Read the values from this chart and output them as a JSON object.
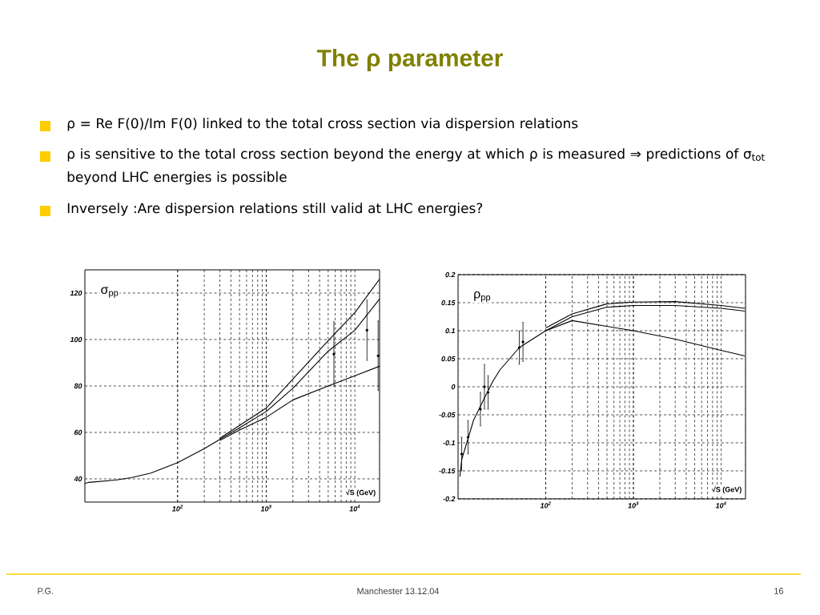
{
  "chart_data": [
    {
      "type": "line",
      "title": "The ρ parameter",
      "annotations": [
        "ρ = Re F(0)/Im F(0)  linked to the total cross section via dispersion relations",
        "ρ  is sensitive to the total cross section beyond the energy at which ρ is measured ⇒ predictions of σ$_{tot}$ beyond LHC energies is possible",
        "Inversely :Are dispersion relations still valid at LHC energies?",
        "σ$_{pp}$",
        "√S (GeV)"
      ],
      "log": "x",
      "grid": true,
      "xlim": [
        9,
        19000
      ],
      "ylim": [
        30,
        130
      ],
      "xticks": [
        {
          "value": 100,
          "label": "10$^{2}$"
        },
        {
          "value": 1000,
          "label": "10$^{3}$"
        },
        {
          "value": 10000,
          "label": "10$^{4}$"
        }
      ],
      "yticks": [
        40,
        60,
        80,
        100,
        120
      ],
      "series": [
        {
          "color": "#000000",
          "x": [
            9,
            10,
            20,
            30,
            50,
            100,
            200,
            300,
            500,
            1000,
            2000,
            5000,
            10000,
            19000
          ],
          "values": [
            38,
            38.5,
            39.5,
            40.5,
            42.5,
            47,
            53,
            57,
            62,
            69,
            79,
            95,
            104,
            117.5
          ]
        },
        {
          "color": "#000000",
          "x": [
            300,
            500,
            1000,
            2000,
            5000,
            10000,
            19000
          ],
          "values": [
            57.5,
            63,
            70.5,
            83,
            99.5,
            111.6,
            126
          ]
        },
        {
          "color": "#000000",
          "x": [
            300,
            500,
            1000,
            2000,
            5000,
            10000,
            19000
          ],
          "values": [
            56.5,
            61,
            66.5,
            74,
            80,
            84.4,
            88.5
          ]
        },
        {
          "type": "scatter",
          "color": "#000000",
          "x": [
            5800,
            13700,
            18300
          ],
          "values": [
            93.7,
            104,
            93
          ],
          "errors": [
            14,
            13,
            15
          ]
        }
      ]
    },
    {
      "type": "line",
      "annotations": [
        "ρ$_{pp}$",
        "√S (GeV)",
        "P.G.",
        "Manchester 13.12.04",
        "16"
      ],
      "log": "x",
      "grid": true,
      "xlim": [
        10,
        19000
      ],
      "ylim": [
        -0.2,
        0.2
      ],
      "xticks": [
        {
          "value": 100,
          "label": "10$^{2}$"
        },
        {
          "value": 1000,
          "label": "10$^{3}$"
        },
        {
          "value": 10000,
          "label": "10$^{4}$"
        }
      ],
      "yticks": [
        -0.2,
        -0.15,
        -0.1,
        -0.05,
        0,
        0.05,
        0.1,
        0.15,
        0.2
      ],
      "series": [
        {
          "color": "#000000",
          "x": [
            10.5,
            11,
            15,
            20,
            25,
            30,
            50,
            100,
            200,
            500,
            1000,
            3000,
            10000,
            18700
          ],
          "values": [
            -0.16,
            -0.13,
            -0.06,
            -0.02,
            0.01,
            0.03,
            0.07,
            0.1,
            0.125,
            0.142,
            0.145,
            0.145,
            0.14,
            0.135
          ]
        },
        {
          "color": "#000000",
          "x": [
            100,
            200,
            500,
            1000,
            3000,
            10000,
            18700
          ],
          "values": [
            0.105,
            0.13,
            0.148,
            0.151,
            0.152,
            0.145,
            0.14
          ]
        },
        {
          "color": "#000000",
          "x": [
            100,
            200,
            1000,
            3000,
            10000,
            18700
          ],
          "values": [
            0.1,
            0.118,
            0.1,
            0.085,
            0.065,
            0.055
          ]
        },
        {
          "type": "scatter",
          "color": "#000000",
          "x": [
            11,
            13,
            18,
            20,
            22,
            50,
            55
          ],
          "values": [
            -0.12,
            -0.09,
            -0.04,
            0,
            -0.01,
            0.07,
            0.08
          ],
          "errors": [
            0.03,
            0.03,
            0.03,
            0.04,
            0.03,
            0.03,
            0.035
          ]
        }
      ]
    }
  ]
}
